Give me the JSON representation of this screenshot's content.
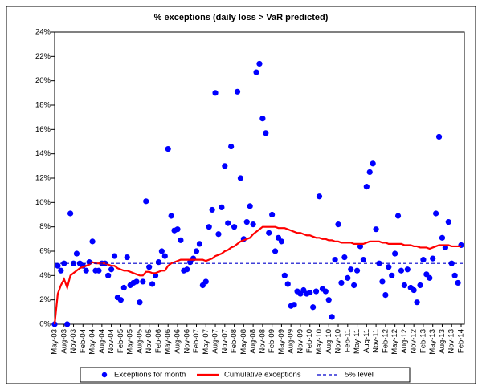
{
  "chart_data": {
    "type": "combo",
    "title": "% exceptions (daily loss > VaR predicted)",
    "categories": [
      "May-03",
      null,
      null,
      "Aug-03",
      null,
      null,
      "Nov-03",
      null,
      null,
      "Feb-04",
      null,
      null,
      "May-04",
      null,
      null,
      "Aug-04",
      null,
      null,
      "Nov-04",
      null,
      null,
      "Feb-05",
      null,
      null,
      "May-05",
      null,
      null,
      "Aug-05",
      null,
      null,
      "Nov-05",
      null,
      null,
      "Feb-06",
      null,
      null,
      "May-06",
      null,
      null,
      "Aug-06",
      null,
      null,
      "Nov-06",
      null,
      null,
      "Feb-07",
      null,
      null,
      "May-07",
      null,
      null,
      "Aug-07",
      null,
      null,
      "Nov-07",
      null,
      null,
      "Feb-08",
      null,
      null,
      "May-08",
      null,
      null,
      "Aug-08",
      null,
      null,
      "Nov-08",
      null,
      null,
      "Feb-09",
      null,
      null,
      "May-09",
      null,
      null,
      "Aug-09",
      null,
      null,
      "Nov-09",
      null,
      null,
      "Feb-10",
      null,
      null,
      "May-10",
      null,
      null,
      "Aug-10",
      null,
      null,
      "Nov-10",
      null,
      null,
      "Feb-11",
      null,
      null,
      "May-11",
      null,
      null,
      "Aug-11",
      null,
      null,
      "Nov-11",
      null,
      null,
      "Feb-12",
      null,
      null,
      "May-12",
      null,
      null,
      "Aug-12",
      null,
      null,
      "Nov-12",
      null,
      null,
      "Feb-13",
      null,
      null,
      "May-13",
      null,
      null,
      "Aug-13",
      null,
      null,
      "Nov-13",
      null,
      null,
      "Feb-14"
    ],
    "series": [
      {
        "name": "Exceptions for month",
        "color": "#0000ff",
        "style": "marker",
        "values": [
          0,
          4.8,
          4.4,
          5.0,
          0,
          9.1,
          5.0,
          5.8,
          5.0,
          4.8,
          4.4,
          5.1,
          6.8,
          4.4,
          4.4,
          5.0,
          5.0,
          4.0,
          4.5,
          5.6,
          2.2,
          2.0,
          3.0,
          5.5,
          3.2,
          3.4,
          3.5,
          1.8,
          3.5,
          10.1,
          4.7,
          3.3,
          4.0,
          5.1,
          6.0,
          5.6,
          14.4,
          8.9,
          7.7,
          7.8,
          6.9,
          4.4,
          4.5,
          5.1,
          5.4,
          6.0,
          6.6,
          3.2,
          3.5,
          8.0,
          9.4,
          19.0,
          7.4,
          9.6,
          13.0,
          8.3,
          14.6,
          8.0,
          19.1,
          12.0,
          7.0,
          8.4,
          9.7,
          8.2,
          20.7,
          21.4,
          16.9,
          15.7,
          7.5,
          9.0,
          6.0,
          7.1,
          6.8,
          4.0,
          3.3,
          1.5,
          1.6,
          2.7,
          2.5,
          2.8,
          2.5,
          2.6,
          1.4,
          2.7,
          10.5,
          2.9,
          2.7,
          2.0,
          0.6,
          5.3,
          8.2,
          3.4,
          5.5,
          3.8,
          4.5,
          3.2,
          4.4,
          6.4,
          5.3,
          11.3,
          12.5,
          13.2,
          7.8,
          5.0,
          3.5,
          2.4,
          4.7,
          4.0,
          5.8,
          8.9,
          4.4,
          3.2,
          4.5,
          3.0,
          2.8,
          1.8,
          3.2,
          5.3,
          4.1,
          3.8,
          5.4,
          9.1,
          15.4,
          7.1,
          6.3,
          8.4,
          5.0,
          4.0,
          3.4,
          6.5
        ]
      },
      {
        "name": "Cumulative exceptions",
        "color": "#ff0000",
        "style": "line",
        "values": [
          0,
          2.5,
          3.2,
          3.7,
          3.0,
          4.0,
          4.2,
          4.4,
          4.6,
          4.7,
          4.8,
          4.9,
          5.1,
          5.0,
          5.0,
          5.0,
          5.0,
          4.9,
          4.8,
          4.8,
          4.6,
          4.5,
          4.4,
          4.4,
          4.3,
          4.2,
          4.1,
          4.0,
          4.0,
          4.3,
          4.3,
          4.2,
          4.2,
          4.3,
          4.4,
          4.4,
          4.8,
          5.0,
          5.1,
          5.2,
          5.3,
          5.3,
          5.3,
          5.3,
          5.3,
          5.3,
          5.3,
          5.3,
          5.2,
          5.3,
          5.4,
          5.6,
          5.7,
          5.8,
          6.0,
          6.1,
          6.3,
          6.4,
          6.6,
          6.8,
          6.9,
          7.0,
          7.1,
          7.4,
          7.6,
          7.8,
          8.0,
          8.0,
          8.0,
          8.0,
          8.0,
          7.9,
          7.9,
          7.9,
          7.8,
          7.7,
          7.6,
          7.5,
          7.5,
          7.4,
          7.3,
          7.3,
          7.2,
          7.1,
          7.1,
          7.0,
          7.0,
          6.9,
          6.9,
          6.8,
          6.8,
          6.7,
          6.7,
          6.7,
          6.7,
          6.6,
          6.6,
          6.6,
          6.6,
          6.7,
          6.8,
          6.8,
          6.8,
          6.8,
          6.7,
          6.7,
          6.6,
          6.6,
          6.6,
          6.6,
          6.6,
          6.5,
          6.5,
          6.5,
          6.4,
          6.4,
          6.3,
          6.3,
          6.3,
          6.2,
          6.3,
          6.4,
          6.5,
          6.5,
          6.5,
          6.5,
          6.4,
          6.4,
          6.4,
          6.4
        ]
      },
      {
        "name": "5% level",
        "color": "#0000cc",
        "style": "dashed",
        "level": 5
      }
    ],
    "ylim": [
      0,
      24
    ],
    "yticks": [
      {
        "value": 0,
        "label": "0%"
      },
      {
        "value": 2,
        "label": "2%"
      },
      {
        "value": 4,
        "label": "4%"
      },
      {
        "value": 6,
        "label": "6%"
      },
      {
        "value": 8,
        "label": "8%"
      },
      {
        "value": 10,
        "label": "10%"
      },
      {
        "value": 12,
        "label": "12%"
      },
      {
        "value": 14,
        "label": "14%"
      },
      {
        "value": 16,
        "label": "16%"
      },
      {
        "value": 18,
        "label": "18%"
      },
      {
        "value": 20,
        "label": "20%"
      },
      {
        "value": 22,
        "label": "22%"
      },
      {
        "value": 24,
        "label": "24%"
      }
    ],
    "grid": false,
    "legend": "bottom"
  }
}
